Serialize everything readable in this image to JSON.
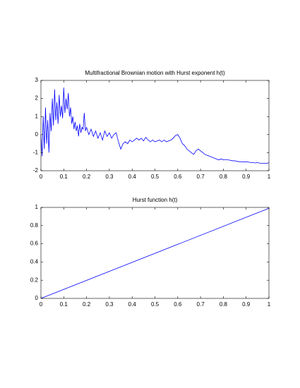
{
  "chart_data": [
    {
      "type": "line",
      "title": "Multifractional Brownian motion with Hurst exponent h(t)",
      "x": [
        0,
        0.005,
        0.01,
        0.015,
        0.02,
        0.025,
        0.03,
        0.035,
        0.04,
        0.045,
        0.05,
        0.055,
        0.06,
        0.065,
        0.07,
        0.075,
        0.08,
        0.085,
        0.09,
        0.095,
        0.1,
        0.105,
        0.11,
        0.115,
        0.12,
        0.125,
        0.13,
        0.135,
        0.14,
        0.145,
        0.15,
        0.155,
        0.16,
        0.165,
        0.17,
        0.175,
        0.18,
        0.185,
        0.19,
        0.195,
        0.2,
        0.21,
        0.22,
        0.23,
        0.24,
        0.25,
        0.26,
        0.27,
        0.28,
        0.29,
        0.3,
        0.31,
        0.32,
        0.33,
        0.34,
        0.35,
        0.36,
        0.37,
        0.38,
        0.39,
        0.4,
        0.41,
        0.42,
        0.43,
        0.44,
        0.45,
        0.46,
        0.47,
        0.48,
        0.49,
        0.5,
        0.51,
        0.52,
        0.53,
        0.54,
        0.55,
        0.56,
        0.57,
        0.58,
        0.59,
        0.6,
        0.61,
        0.62,
        0.63,
        0.64,
        0.65,
        0.66,
        0.67,
        0.68,
        0.69,
        0.7,
        0.71,
        0.72,
        0.73,
        0.74,
        0.75,
        0.76,
        0.77,
        0.78,
        0.79,
        0.8,
        0.81,
        0.82,
        0.83,
        0.84,
        0.85,
        0.86,
        0.87,
        0.88,
        0.89,
        0.9,
        0.91,
        0.92,
        0.93,
        0.94,
        0.95,
        0.96,
        0.97,
        0.98,
        0.99,
        1
      ],
      "values": [
        0,
        -1.2,
        1.0,
        -0.8,
        1.5,
        -0.5,
        0.8,
        -1.0,
        1.2,
        0.2,
        2.0,
        0.5,
        2.5,
        0.8,
        1.8,
        0.6,
        2.2,
        1.0,
        1.6,
        0.9,
        2.6,
        1.2,
        2.0,
        1.4,
        2.3,
        1.0,
        1.5,
        0.6,
        1.0,
        0.3,
        0.7,
        0.2,
        0.5,
        -0.1,
        0.6,
        0.1,
        0.4,
        0.3,
        1.2,
        0.2,
        0.4,
        0.0,
        0.3,
        -0.1,
        0.2,
        -0.2,
        0.1,
        -0.3,
        0.2,
        -0.1,
        0.1,
        -0.2,
        0.0,
        0.1,
        -0.4,
        -0.8,
        -0.5,
        -0.4,
        -0.5,
        -0.3,
        -0.4,
        -0.3,
        -0.2,
        -0.3,
        -0.2,
        -0.35,
        -0.15,
        -0.3,
        -0.4,
        -0.3,
        -0.4,
        -0.35,
        -0.3,
        -0.4,
        -0.3,
        -0.4,
        -0.35,
        -0.3,
        -0.2,
        -0.05,
        0.0,
        -0.2,
        -0.5,
        -0.6,
        -0.8,
        -0.9,
        -1.0,
        -1.1,
        -0.9,
        -0.8,
        -0.9,
        -1.0,
        -1.1,
        -1.15,
        -1.2,
        -1.25,
        -1.3,
        -1.35,
        -1.4,
        -1.35,
        -1.4,
        -1.38,
        -1.4,
        -1.42,
        -1.45,
        -1.45,
        -1.48,
        -1.5,
        -1.5,
        -1.52,
        -1.5,
        -1.52,
        -1.55,
        -1.55,
        -1.57,
        -1.55,
        -1.58,
        -1.6,
        -1.58,
        -1.6,
        -1.55
      ],
      "color": "#0000ff",
      "xlim": [
        0,
        1
      ],
      "ylim": [
        -2,
        3
      ],
      "xticks": [
        0,
        0.1,
        0.2,
        0.3,
        0.4,
        0.5,
        0.6,
        0.7,
        0.8,
        0.9,
        1
      ],
      "yticks": [
        -2,
        -1,
        0,
        1,
        2,
        3
      ]
    },
    {
      "type": "line",
      "title": "Hurst function h(t)",
      "x": [
        0,
        1
      ],
      "values": [
        0,
        0.99
      ],
      "color": "#0000ff",
      "xlim": [
        0,
        1
      ],
      "ylim": [
        0,
        1
      ],
      "xticks": [
        0,
        0.1,
        0.2,
        0.3,
        0.4,
        0.5,
        0.6,
        0.7,
        0.8,
        0.9,
        1
      ],
      "yticks": [
        0,
        0.2,
        0.4,
        0.6,
        0.8,
        1
      ]
    }
  ]
}
